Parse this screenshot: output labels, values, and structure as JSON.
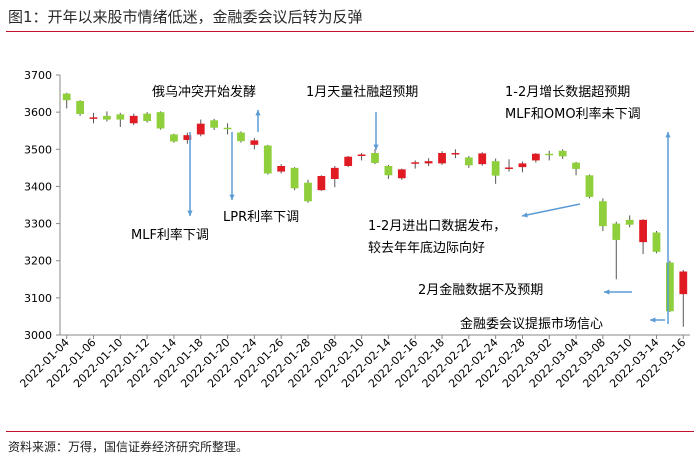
{
  "title": "图1：开年以来股市情绪低迷，金融委会议后转为反弹",
  "source": "资料来源：万得，国信证券经济研究所整理。",
  "chart_data": {
    "type": "candlestick",
    "ylim": [
      3000,
      3700
    ],
    "yticks": [
      3000,
      3100,
      3200,
      3300,
      3400,
      3500,
      3600,
      3700
    ],
    "xticks": [
      "2022-01-04",
      "2022-01-06",
      "2022-01-10",
      "2022-01-12",
      "2022-01-14",
      "2022-01-18",
      "2022-01-20",
      "2022-01-24",
      "2022-01-26",
      "2022-01-28",
      "2022-02-08",
      "2022-02-10",
      "2022-02-14",
      "2022-02-16",
      "2022-02-18",
      "2022-02-22",
      "2022-02-24",
      "2022-02-28",
      "2022-03-02",
      "2022-03-04",
      "2022-03-08",
      "2022-03-10",
      "2022-03-14",
      "2022-03-16"
    ],
    "up_color": "#e01b24",
    "down_color": "#8fcf3c",
    "candles": [
      {
        "date": "2022-01-04",
        "open": 3650,
        "close": 3632,
        "high": 3652,
        "low": 3610
      },
      {
        "date": "2022-01-05",
        "open": 3630,
        "close": 3595,
        "high": 3632,
        "low": 3590
      },
      {
        "date": "2022-01-06",
        "open": 3582,
        "close": 3586,
        "high": 3598,
        "low": 3570
      },
      {
        "date": "2022-01-07",
        "open": 3590,
        "close": 3580,
        "high": 3602,
        "low": 3575
      },
      {
        "date": "2022-01-10",
        "open": 3594,
        "close": 3580,
        "high": 3598,
        "low": 3560
      },
      {
        "date": "2022-01-11",
        "open": 3570,
        "close": 3590,
        "high": 3596,
        "low": 3565
      },
      {
        "date": "2022-01-12",
        "open": 3596,
        "close": 3576,
        "high": 3600,
        "low": 3572
      },
      {
        "date": "2022-01-13",
        "open": 3600,
        "close": 3556,
        "high": 3602,
        "low": 3553
      },
      {
        "date": "2022-01-14",
        "open": 3540,
        "close": 3521,
        "high": 3542,
        "low": 3518
      },
      {
        "date": "2022-01-17",
        "open": 3525,
        "close": 3538,
        "high": 3545,
        "low": 3515
      },
      {
        "date": "2022-01-18",
        "open": 3540,
        "close": 3569,
        "high": 3580,
        "low": 3535
      },
      {
        "date": "2022-01-19",
        "open": 3578,
        "close": 3558,
        "high": 3582,
        "low": 3552
      },
      {
        "date": "2022-01-20",
        "open": 3558,
        "close": 3555,
        "high": 3570,
        "low": 3540
      },
      {
        "date": "2022-01-21",
        "open": 3545,
        "close": 3522,
        "high": 3548,
        "low": 3518
      },
      {
        "date": "2022-01-24",
        "open": 3512,
        "close": 3524,
        "high": 3530,
        "low": 3500
      },
      {
        "date": "2022-01-25",
        "open": 3510,
        "close": 3435,
        "high": 3512,
        "low": 3432
      },
      {
        "date": "2022-01-26",
        "open": 3440,
        "close": 3455,
        "high": 3460,
        "low": 3435
      },
      {
        "date": "2022-01-27",
        "open": 3450,
        "close": 3395,
        "high": 3452,
        "low": 3390
      },
      {
        "date": "2022-01-28",
        "open": 3410,
        "close": 3360,
        "high": 3418,
        "low": 3356
      },
      {
        "date": "2022-02-07",
        "open": 3390,
        "close": 3428,
        "high": 3430,
        "low": 3388
      },
      {
        "date": "2022-02-08",
        "open": 3420,
        "close": 3450,
        "high": 3455,
        "low": 3398
      },
      {
        "date": "2022-02-09",
        "open": 3455,
        "close": 3480,
        "high": 3482,
        "low": 3452
      },
      {
        "date": "2022-02-10",
        "open": 3482,
        "close": 3486,
        "high": 3490,
        "low": 3470
      },
      {
        "date": "2022-02-11",
        "open": 3490,
        "close": 3463,
        "high": 3500,
        "low": 3460
      },
      {
        "date": "2022-02-14",
        "open": 3455,
        "close": 3430,
        "high": 3458,
        "low": 3420
      },
      {
        "date": "2022-02-15",
        "open": 3422,
        "close": 3446,
        "high": 3448,
        "low": 3418
      },
      {
        "date": "2022-02-16",
        "open": 3463,
        "close": 3465,
        "high": 3470,
        "low": 3448
      },
      {
        "date": "2022-02-17",
        "open": 3462,
        "close": 3468,
        "high": 3476,
        "low": 3455
      },
      {
        "date": "2022-02-18",
        "open": 3462,
        "close": 3490,
        "high": 3495,
        "low": 3458
      },
      {
        "date": "2022-02-21",
        "open": 3490,
        "close": 3490,
        "high": 3500,
        "low": 3476
      },
      {
        "date": "2022-02-22",
        "open": 3478,
        "close": 3457,
        "high": 3482,
        "low": 3450
      },
      {
        "date": "2022-02-23",
        "open": 3460,
        "close": 3489,
        "high": 3492,
        "low": 3456
      },
      {
        "date": "2022-02-24",
        "open": 3468,
        "close": 3429,
        "high": 3475,
        "low": 3407
      },
      {
        "date": "2022-02-25",
        "open": 3448,
        "close": 3451,
        "high": 3473,
        "low": 3440
      },
      {
        "date": "2022-02-28",
        "open": 3452,
        "close": 3462,
        "high": 3467,
        "low": 3438
      },
      {
        "date": "2022-03-01",
        "open": 3470,
        "close": 3488,
        "high": 3490,
        "low": 3464
      },
      {
        "date": "2022-03-02",
        "open": 3488,
        "close": 3484,
        "high": 3496,
        "low": 3470
      },
      {
        "date": "2022-03-03",
        "open": 3496,
        "close": 3481,
        "high": 3500,
        "low": 3474
      },
      {
        "date": "2022-03-04",
        "open": 3464,
        "close": 3447,
        "high": 3466,
        "low": 3430
      },
      {
        "date": "2022-03-07",
        "open": 3430,
        "close": 3372,
        "high": 3432,
        "low": 3368
      },
      {
        "date": "2022-03-08",
        "open": 3360,
        "close": 3293,
        "high": 3368,
        "low": 3280
      },
      {
        "date": "2022-03-09",
        "open": 3300,
        "close": 3256,
        "high": 3305,
        "low": 3150
      },
      {
        "date": "2022-03-10",
        "open": 3310,
        "close": 3297,
        "high": 3322,
        "low": 3290
      },
      {
        "date": "2022-03-11",
        "open": 3250,
        "close": 3310,
        "high": 3312,
        "low": 3218
      },
      {
        "date": "2022-03-14",
        "open": 3276,
        "close": 3224,
        "high": 3280,
        "low": 3220
      },
      {
        "date": "2022-03-15",
        "open": 3195,
        "close": 3064,
        "high": 3200,
        "low": 3062
      },
      {
        "date": "2022-03-16",
        "open": 3110,
        "close": 3171,
        "high": 3175,
        "low": 3022
      }
    ],
    "annotations": [
      {
        "text": "俄乌冲突开始发酵",
        "date": "2022-01-24",
        "price": 3540,
        "direction": "up"
      },
      {
        "text": "1月天量社融超预期",
        "date": "2022-02-11",
        "price": 3490,
        "direction": "down"
      },
      {
        "text": "1-2月增长数据超预期",
        "date": "2022-03-15",
        "price": 3110,
        "direction": "up"
      },
      {
        "text": "MLF和OMO利率未下调",
        "date": "2022-03-15",
        "price": 3110,
        "direction": "up"
      },
      {
        "text": "MLF利率下调",
        "date": "2022-01-17",
        "price": 3510,
        "direction": "down"
      },
      {
        "text": "LPR利率下调",
        "date": "2022-01-20",
        "price": 3530,
        "direction": "down"
      },
      {
        "text": "1-2月进出口数据发布，",
        "date": "2022-03-07",
        "price": 3340,
        "direction": "right"
      },
      {
        "text": "较去年年底边际向好",
        "date": "2022-03-07",
        "price": 3340,
        "direction": "right"
      },
      {
        "text": "2月金融数据不及预期",
        "date": "2022-03-14",
        "price": 3120,
        "direction": "right"
      },
      {
        "text": "金融委会议提振市场信心",
        "date": "2022-03-16",
        "price": 3030,
        "direction": "right"
      }
    ]
  }
}
